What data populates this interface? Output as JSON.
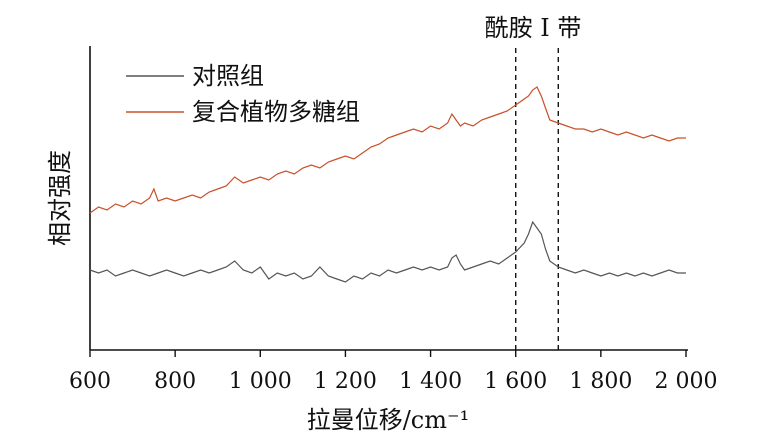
{
  "chart_data": {
    "type": "line",
    "title": "",
    "xlabel": "拉曼位移/cm⁻¹",
    "ylabel": "相对强度",
    "xlim": [
      600,
      2000
    ],
    "ylim": [
      0,
      1
    ],
    "x_ticks": [
      600,
      800,
      1000,
      1200,
      1400,
      1600,
      1800,
      2000
    ],
    "x_tick_labels": [
      "600",
      "800",
      "1 000",
      "1 200",
      "1 400",
      "1 600",
      "1 800",
      "2 000"
    ],
    "y_ticks_visible": false,
    "grid": false,
    "legend": {
      "position": "top-left",
      "entries": [
        {
          "name": "对照组",
          "color": "#555555"
        },
        {
          "name": "复合植物多糖组",
          "color": "#c8502a"
        }
      ]
    },
    "annotations": [
      {
        "type": "vertical-dashed",
        "x": 1600
      },
      {
        "type": "vertical-dashed",
        "x": 1700
      },
      {
        "type": "label",
        "text": "酰胺 I 带",
        "x_range": [
          1600,
          1700
        ]
      }
    ],
    "series": [
      {
        "name": "对照组",
        "color": "#555555",
        "x": [
          600,
          620,
          640,
          660,
          680,
          700,
          720,
          740,
          760,
          780,
          800,
          820,
          840,
          860,
          880,
          900,
          920,
          940,
          960,
          980,
          1000,
          1020,
          1040,
          1060,
          1080,
          1100,
          1120,
          1140,
          1160,
          1180,
          1200,
          1220,
          1240,
          1260,
          1280,
          1300,
          1320,
          1340,
          1360,
          1380,
          1400,
          1420,
          1440,
          1450,
          1460,
          1470,
          1480,
          1500,
          1520,
          1540,
          1560,
          1580,
          1600,
          1620,
          1630,
          1640,
          1650,
          1660,
          1670,
          1680,
          1700,
          1720,
          1740,
          1760,
          1780,
          1800,
          1820,
          1840,
          1860,
          1880,
          1900,
          1920,
          1940,
          1960,
          1980,
          2000
        ],
        "y": [
          0.26,
          0.25,
          0.26,
          0.24,
          0.25,
          0.26,
          0.25,
          0.24,
          0.25,
          0.26,
          0.25,
          0.24,
          0.25,
          0.26,
          0.25,
          0.26,
          0.27,
          0.29,
          0.26,
          0.25,
          0.27,
          0.23,
          0.25,
          0.24,
          0.25,
          0.23,
          0.24,
          0.27,
          0.24,
          0.23,
          0.22,
          0.24,
          0.23,
          0.25,
          0.24,
          0.26,
          0.25,
          0.26,
          0.27,
          0.26,
          0.27,
          0.26,
          0.27,
          0.3,
          0.31,
          0.28,
          0.26,
          0.27,
          0.28,
          0.29,
          0.28,
          0.3,
          0.32,
          0.35,
          0.38,
          0.42,
          0.4,
          0.38,
          0.33,
          0.29,
          0.27,
          0.26,
          0.25,
          0.26,
          0.25,
          0.24,
          0.25,
          0.24,
          0.25,
          0.24,
          0.25,
          0.24,
          0.25,
          0.26,
          0.25,
          0.25
        ]
      },
      {
        "name": "复合植物多糖组",
        "color": "#c8502a",
        "x": [
          600,
          620,
          640,
          660,
          680,
          700,
          720,
          740,
          750,
          760,
          780,
          800,
          820,
          840,
          860,
          880,
          900,
          920,
          940,
          960,
          980,
          1000,
          1020,
          1040,
          1060,
          1080,
          1100,
          1120,
          1140,
          1160,
          1180,
          1200,
          1220,
          1240,
          1260,
          1280,
          1300,
          1320,
          1340,
          1360,
          1380,
          1400,
          1420,
          1440,
          1450,
          1460,
          1470,
          1480,
          1500,
          1520,
          1540,
          1560,
          1580,
          1600,
          1620,
          1630,
          1640,
          1650,
          1660,
          1670,
          1680,
          1700,
          1720,
          1740,
          1760,
          1780,
          1800,
          1820,
          1840,
          1860,
          1880,
          1900,
          1920,
          1940,
          1960,
          1980,
          2000
        ],
        "y": [
          0.45,
          0.47,
          0.46,
          0.48,
          0.47,
          0.49,
          0.48,
          0.5,
          0.53,
          0.49,
          0.5,
          0.49,
          0.5,
          0.51,
          0.5,
          0.52,
          0.53,
          0.54,
          0.57,
          0.55,
          0.56,
          0.57,
          0.56,
          0.58,
          0.59,
          0.58,
          0.6,
          0.61,
          0.6,
          0.62,
          0.63,
          0.64,
          0.63,
          0.65,
          0.67,
          0.68,
          0.7,
          0.71,
          0.72,
          0.73,
          0.72,
          0.74,
          0.73,
          0.75,
          0.78,
          0.76,
          0.74,
          0.75,
          0.74,
          0.76,
          0.77,
          0.78,
          0.79,
          0.81,
          0.83,
          0.84,
          0.86,
          0.87,
          0.84,
          0.8,
          0.76,
          0.75,
          0.74,
          0.73,
          0.73,
          0.72,
          0.73,
          0.72,
          0.71,
          0.72,
          0.71,
          0.7,
          0.71,
          0.7,
          0.69,
          0.7,
          0.7
        ]
      }
    ]
  }
}
